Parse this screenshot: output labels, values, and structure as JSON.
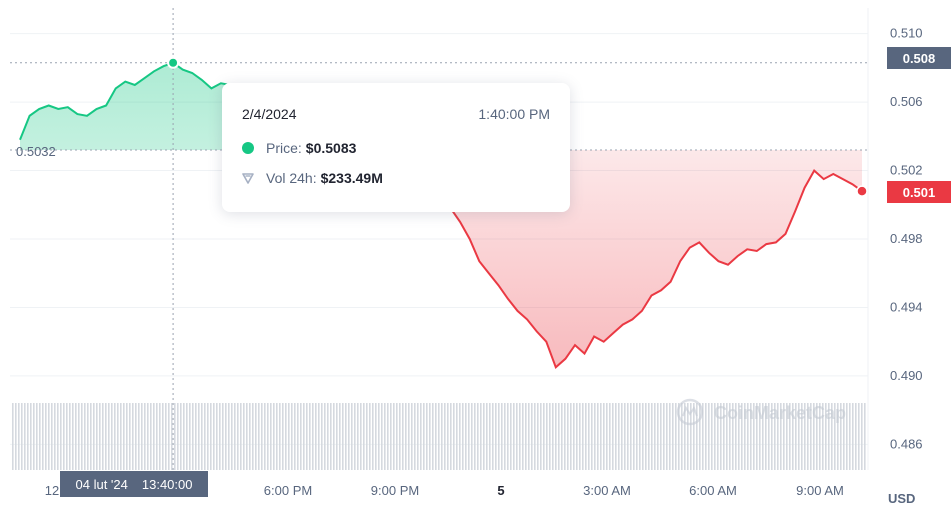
{
  "chart_data": {
    "type": "area",
    "baseline": 0.5032,
    "baseline_label": "0.5032",
    "ylim": [
      0.4845,
      0.5115
    ],
    "y_ticks": [
      "0.510",
      "0.506",
      "0.502",
      "0.498",
      "0.494",
      "0.490",
      "0.486"
    ],
    "x_tick_labels": [
      "12",
      "6:00 PM",
      "9:00 PM",
      "5",
      "3:00 AM",
      "6:00 AM",
      "9:00 AM"
    ],
    "y_axis_unit": "USD",
    "current_price_label": "0.501",
    "hover_price_label": "0.508",
    "hover_x_label_date": "04 lut '24",
    "hover_x_label_time": "13:40:00",
    "series": [
      {
        "up_color": "#16c784",
        "down_color": "#ea3943",
        "points": [
          [
            0,
            0.5038
          ],
          [
            2,
            0.5052
          ],
          [
            4,
            0.5056
          ],
          [
            6,
            0.5058
          ],
          [
            8,
            0.5056
          ],
          [
            10,
            0.5057
          ],
          [
            12,
            0.5053
          ],
          [
            14,
            0.5052
          ],
          [
            16,
            0.5056
          ],
          [
            18,
            0.5058
          ],
          [
            20,
            0.5068
          ],
          [
            22,
            0.5072
          ],
          [
            24,
            0.507
          ],
          [
            26,
            0.5074
          ],
          [
            28,
            0.5078
          ],
          [
            30,
            0.5081
          ],
          [
            32,
            0.5083
          ],
          [
            34,
            0.5079
          ],
          [
            36,
            0.5077
          ],
          [
            38,
            0.5073
          ],
          [
            40,
            0.5068
          ],
          [
            42,
            0.5071
          ],
          [
            44,
            0.507
          ],
          [
            46,
            0.5062
          ],
          [
            48,
            0.506
          ],
          [
            50,
            0.5058
          ],
          [
            52,
            0.5052
          ],
          [
            54,
            0.5055
          ],
          [
            56,
            0.5056
          ],
          [
            58,
            0.5054
          ],
          [
            60,
            0.505
          ],
          [
            62,
            0.5048
          ],
          [
            64,
            0.5046
          ],
          [
            66,
            0.5043
          ],
          [
            68,
            0.504
          ],
          [
            70,
            0.5036
          ],
          [
            72,
            0.5034
          ],
          [
            74,
            0.503
          ],
          [
            76,
            0.5026
          ],
          [
            78,
            0.502
          ],
          [
            80,
            0.5012
          ],
          [
            82,
            0.5005
          ],
          [
            84,
            0.5005
          ],
          [
            86,
            0.5006
          ],
          [
            88,
            0.5003
          ],
          [
            90,
            0.4998
          ],
          [
            92,
            0.499
          ],
          [
            94,
            0.498
          ],
          [
            96,
            0.4967
          ],
          [
            98,
            0.496
          ],
          [
            100,
            0.4953
          ],
          [
            102,
            0.4945
          ],
          [
            104,
            0.4938
          ],
          [
            106,
            0.4933
          ],
          [
            108,
            0.4926
          ],
          [
            110,
            0.492
          ],
          [
            112,
            0.4905
          ],
          [
            114,
            0.491
          ],
          [
            116,
            0.4918
          ],
          [
            118,
            0.4913
          ],
          [
            120,
            0.4923
          ],
          [
            122,
            0.492
          ],
          [
            124,
            0.4925
          ],
          [
            126,
            0.493
          ],
          [
            128,
            0.4933
          ],
          [
            130,
            0.4938
          ],
          [
            132,
            0.4947
          ],
          [
            134,
            0.495
          ],
          [
            136,
            0.4955
          ],
          [
            138,
            0.4967
          ],
          [
            140,
            0.4975
          ],
          [
            142,
            0.4978
          ],
          [
            144,
            0.4972
          ],
          [
            146,
            0.4967
          ],
          [
            148,
            0.4965
          ],
          [
            150,
            0.497
          ],
          [
            152,
            0.4974
          ],
          [
            154,
            0.4973
          ],
          [
            156,
            0.4977
          ],
          [
            158,
            0.4978
          ],
          [
            160,
            0.4983
          ],
          [
            162,
            0.4996
          ],
          [
            164,
            0.501
          ],
          [
            166,
            0.502
          ],
          [
            168,
            0.5015
          ],
          [
            170,
            0.5018
          ],
          [
            172,
            0.5015
          ],
          [
            174,
            0.5012
          ],
          [
            176,
            0.5008
          ]
        ]
      }
    ],
    "volume": "flat",
    "watermark": "CoinMarketCap"
  },
  "tooltip": {
    "date": "2/4/2024",
    "time": "1:40:00 PM",
    "price_label": "Price:",
    "price_value": "$0.5083",
    "vol_label": "Vol 24h:",
    "vol_value": "$233.49M"
  },
  "colors": {
    "up": "#16c784",
    "down": "#ea3943",
    "axis_text": "#58667e",
    "badge_gray": "#58667e"
  }
}
